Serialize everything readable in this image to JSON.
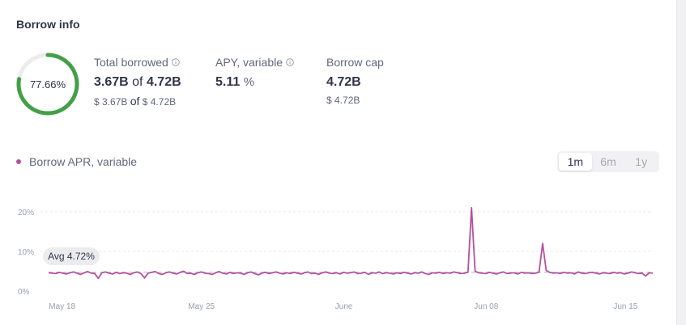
{
  "section": {
    "title": "Borrow info"
  },
  "ring": {
    "label": "77.66%",
    "fraction": 0.7766,
    "color": "#43a047",
    "track": "#ececec"
  },
  "stats": {
    "total": {
      "label": "Total borrowed",
      "value1": "3.67B",
      "of": "of",
      "value2": "4.72B",
      "usd1": "$ 3.67B",
      "usd2": "$ 4.72B"
    },
    "apy": {
      "label": "APY, variable",
      "value": "5.11",
      "unit": "%"
    },
    "cap": {
      "label": "Borrow cap",
      "value": "4.72B",
      "usd": "$ 4.72B"
    }
  },
  "legend": {
    "label": "Borrow APR, variable",
    "color": "#b6509e"
  },
  "range": {
    "options": [
      "1m",
      "6m",
      "1y"
    ],
    "selected": "1m"
  },
  "chart_data": {
    "type": "line",
    "series": [
      {
        "name": "Borrow APR, variable",
        "color": "#b6509e",
        "values": [
          4.6,
          4.5,
          4.4,
          4.7,
          4.5,
          4.3,
          4.6,
          4.8,
          4.5,
          4.2,
          4.6,
          4.9,
          4.5,
          4.4,
          3.2,
          4.6,
          4.8,
          4.5,
          4.3,
          4.7,
          4.4,
          4.6,
          4.5,
          4.2,
          4.6,
          4.8,
          4.4,
          3.3,
          4.5,
          4.7,
          4.9,
          4.4,
          4.2,
          4.6,
          4.8,
          4.5,
          4.3,
          4.7,
          5.0,
          4.4,
          4.5,
          4.2,
          4.6,
          4.8,
          4.5,
          4.4,
          4.2,
          4.6,
          4.9,
          4.5,
          4.3,
          4.7,
          4.4,
          4.6,
          4.5,
          4.2,
          4.6,
          4.8,
          4.4,
          4.1,
          4.5,
          4.7,
          4.4,
          4.6,
          4.8,
          4.5,
          4.3,
          4.6,
          4.4,
          4.7,
          4.5,
          4.3,
          4.6,
          4.8,
          4.4,
          4.5,
          4.2,
          4.6,
          4.8,
          4.5,
          4.4,
          4.6,
          4.3,
          4.7,
          4.5,
          4.6,
          4.8,
          4.4,
          4.5,
          4.7,
          4.2,
          4.6,
          4.5,
          4.8,
          4.4,
          4.6,
          4.5,
          4.3,
          4.6,
          4.4,
          4.7,
          4.5,
          4.3,
          4.6,
          4.5,
          4.8,
          4.4,
          4.2,
          4.6,
          4.5,
          4.7,
          4.4,
          4.6,
          4.5,
          4.8,
          4.6,
          4.4,
          4.5,
          4.7,
          21.0,
          5.0,
          4.6,
          4.5,
          4.4,
          4.7,
          4.5,
          4.3,
          4.6,
          4.8,
          4.4,
          4.5,
          4.6,
          4.3,
          4.7,
          4.5,
          4.6,
          4.4,
          4.5,
          4.8,
          12.0,
          5.2,
          4.7,
          4.5,
          4.6,
          4.4,
          4.7,
          4.5,
          4.6,
          4.3,
          4.8,
          4.5,
          4.4,
          4.6,
          4.7,
          4.5,
          4.3,
          4.6,
          4.5,
          4.4,
          4.7,
          4.5,
          4.6,
          4.3,
          4.5,
          4.8,
          4.6,
          4.4,
          4.5,
          3.8,
          4.6,
          4.5
        ]
      }
    ],
    "average": {
      "label": "Avg 4.72%",
      "value": 4.72
    },
    "ylim": [
      0,
      22
    ],
    "yticks": [
      "0%",
      "10%",
      "20%"
    ],
    "ytick_values": [
      0,
      10,
      20
    ],
    "xticks": [
      "May 18",
      "May 25",
      "June",
      "Jun 08",
      "Jun 15"
    ],
    "xtick_positions": [
      0.025,
      0.255,
      0.49,
      0.725,
      0.955
    ],
    "grid": true
  }
}
